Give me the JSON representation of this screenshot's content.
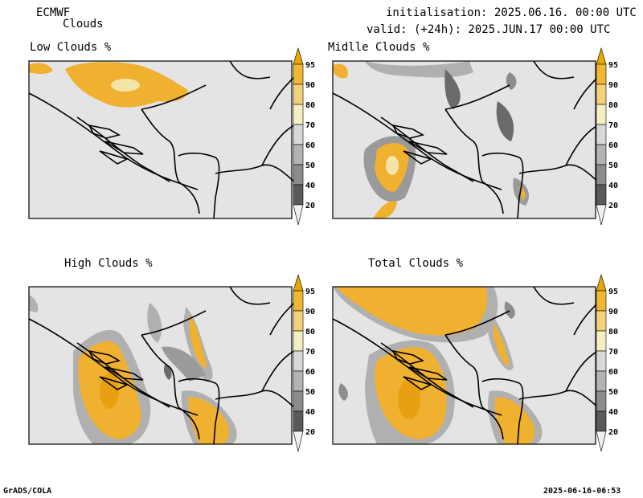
{
  "header": {
    "model": "ECMWF",
    "product": "Clouds",
    "init_line": "initialisation: 2025.06.16. 00:00 UTC",
    "valid_line": "valid: (+24h): 2025.JUN.17 00:00 UTC"
  },
  "panels": [
    {
      "title": "Low Clouds %"
    },
    {
      "title": "Midlle Clouds %"
    },
    {
      "title": "High Clouds %"
    },
    {
      "title": "Total Clouds %"
    }
  ],
  "colorbar": {
    "labels": [
      "95",
      "90",
      "80",
      "70",
      "60",
      "50",
      "40",
      "20"
    ],
    "colors": [
      "#e8a800",
      "#f0b830",
      "#f5d27a",
      "#f5f0c0",
      "#d8d8d8",
      "#b4b4b4",
      "#8c8c8c",
      "#5a5a5a",
      "#f0f0f0"
    ]
  },
  "footer": {
    "left": "GrADS/COLA",
    "right": "2025-06-16-06:53"
  },
  "colors": {
    "background_field": "#e4e4e4",
    "orange": "#f0b030",
    "orange_dark": "#e8a010",
    "light_yellow": "#f5e4a8",
    "gray_mid": "#b0b0b0",
    "gray_dark": "#6a6a6a"
  }
}
